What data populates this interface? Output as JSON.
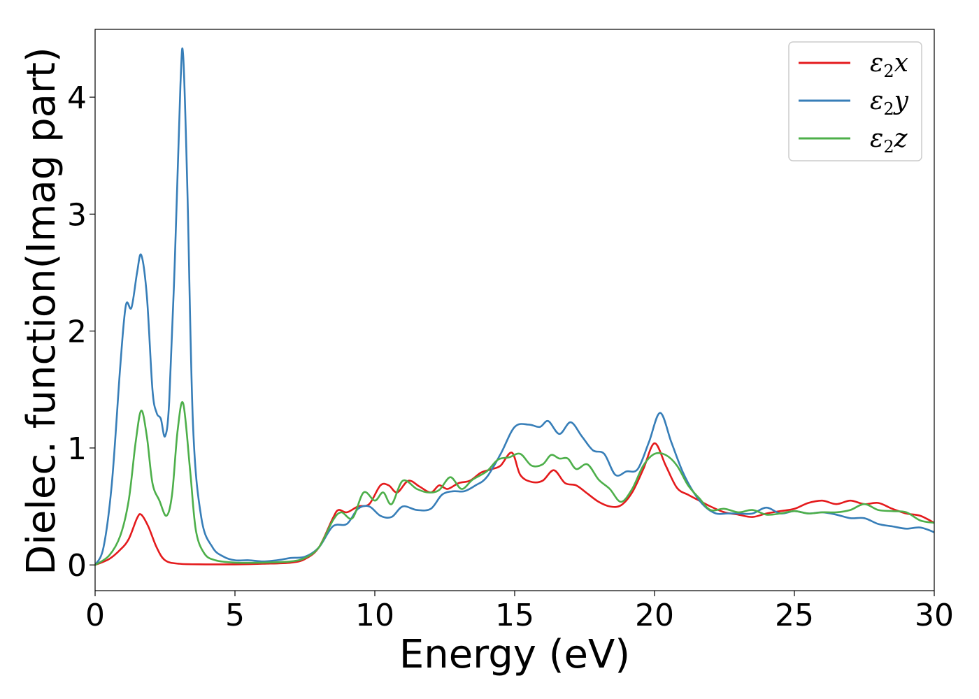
{
  "chart_data": {
    "type": "line",
    "xlabel": "Energy (eV)",
    "ylabel": "Dielec. function(Imag part)",
    "xlim": [
      0,
      30
    ],
    "ylim": [
      -0.22,
      4.58
    ],
    "xticks": [
      0,
      5,
      10,
      15,
      20,
      25,
      30
    ],
    "xtick_labels": [
      "0",
      "5",
      "10",
      "15",
      "20",
      "25",
      "30"
    ],
    "yticks": [
      0,
      1,
      2,
      3,
      4
    ],
    "ytick_labels": [
      "0",
      "1",
      "2",
      "3",
      "4"
    ],
    "grid": false,
    "legend_position": "top-right",
    "series": [
      {
        "name": "ε2x",
        "base": "ε",
        "sub": "2",
        "tail": "x",
        "color": "#e41a1c",
        "points": [
          [
            0,
            0
          ],
          [
            0.5,
            0.05
          ],
          [
            0.9,
            0.13
          ],
          [
            1.2,
            0.22
          ],
          [
            1.5,
            0.4
          ],
          [
            1.65,
            0.43
          ],
          [
            1.9,
            0.33
          ],
          [
            2.2,
            0.15
          ],
          [
            2.5,
            0.04
          ],
          [
            3,
            0.01
          ],
          [
            4,
            0.005
          ],
          [
            5,
            0.005
          ],
          [
            6,
            0.01
          ],
          [
            7,
            0.02
          ],
          [
            7.5,
            0.05
          ],
          [
            8,
            0.15
          ],
          [
            8.5,
            0.4
          ],
          [
            8.7,
            0.47
          ],
          [
            9,
            0.45
          ],
          [
            9.4,
            0.5
          ],
          [
            9.8,
            0.52
          ],
          [
            10.2,
            0.68
          ],
          [
            10.5,
            0.68
          ],
          [
            10.8,
            0.62
          ],
          [
            11.2,
            0.72
          ],
          [
            11.6,
            0.67
          ],
          [
            12,
            0.62
          ],
          [
            12.3,
            0.68
          ],
          [
            12.6,
            0.65
          ],
          [
            13,
            0.7
          ],
          [
            13.4,
            0.72
          ],
          [
            13.8,
            0.79
          ],
          [
            14.2,
            0.82
          ],
          [
            14.5,
            0.85
          ],
          [
            14.9,
            0.96
          ],
          [
            15.2,
            0.77
          ],
          [
            15.6,
            0.71
          ],
          [
            16,
            0.72
          ],
          [
            16.4,
            0.81
          ],
          [
            16.8,
            0.7
          ],
          [
            17.2,
            0.68
          ],
          [
            17.6,
            0.61
          ],
          [
            18,
            0.54
          ],
          [
            18.4,
            0.5
          ],
          [
            18.8,
            0.51
          ],
          [
            19.2,
            0.62
          ],
          [
            19.6,
            0.82
          ],
          [
            20,
            1.04
          ],
          [
            20.4,
            0.85
          ],
          [
            20.8,
            0.66
          ],
          [
            21.2,
            0.6
          ],
          [
            21.6,
            0.55
          ],
          [
            22,
            0.5
          ],
          [
            22.5,
            0.45
          ],
          [
            23,
            0.43
          ],
          [
            23.5,
            0.41
          ],
          [
            24,
            0.44
          ],
          [
            24.5,
            0.46
          ],
          [
            25,
            0.48
          ],
          [
            25.5,
            0.53
          ],
          [
            26,
            0.55
          ],
          [
            26.5,
            0.52
          ],
          [
            27,
            0.55
          ],
          [
            27.5,
            0.52
          ],
          [
            28,
            0.53
          ],
          [
            28.5,
            0.48
          ],
          [
            29,
            0.44
          ],
          [
            29.5,
            0.42
          ],
          [
            30,
            0.36
          ]
        ]
      },
      {
        "name": "ε2y",
        "base": "ε",
        "sub": "2",
        "tail": "y",
        "color": "#377eb8",
        "points": [
          [
            0,
            0
          ],
          [
            0.3,
            0.15
          ],
          [
            0.6,
            0.7
          ],
          [
            0.9,
            1.7
          ],
          [
            1.1,
            2.22
          ],
          [
            1.3,
            2.2
          ],
          [
            1.5,
            2.5
          ],
          [
            1.65,
            2.65
          ],
          [
            1.85,
            2.3
          ],
          [
            2.05,
            1.5
          ],
          [
            2.2,
            1.3
          ],
          [
            2.35,
            1.25
          ],
          [
            2.5,
            1.1
          ],
          [
            2.65,
            1.4
          ],
          [
            2.85,
            2.6
          ],
          [
            3.05,
            4.1
          ],
          [
            3.15,
            4.35
          ],
          [
            3.3,
            3.2
          ],
          [
            3.5,
            1.2
          ],
          [
            3.8,
            0.4
          ],
          [
            4.2,
            0.15
          ],
          [
            4.6,
            0.07
          ],
          [
            5,
            0.04
          ],
          [
            5.5,
            0.04
          ],
          [
            6,
            0.03
          ],
          [
            6.5,
            0.04
          ],
          [
            7,
            0.06
          ],
          [
            7.5,
            0.07
          ],
          [
            8,
            0.15
          ],
          [
            8.5,
            0.33
          ],
          [
            9,
            0.35
          ],
          [
            9.4,
            0.48
          ],
          [
            9.8,
            0.5
          ],
          [
            10.2,
            0.42
          ],
          [
            10.6,
            0.41
          ],
          [
            11,
            0.5
          ],
          [
            11.5,
            0.47
          ],
          [
            12,
            0.48
          ],
          [
            12.4,
            0.6
          ],
          [
            12.8,
            0.63
          ],
          [
            13.2,
            0.63
          ],
          [
            13.6,
            0.68
          ],
          [
            14,
            0.75
          ],
          [
            14.5,
            0.95
          ],
          [
            15,
            1.18
          ],
          [
            15.5,
            1.2
          ],
          [
            15.9,
            1.18
          ],
          [
            16.2,
            1.23
          ],
          [
            16.6,
            1.12
          ],
          [
            17,
            1.22
          ],
          [
            17.4,
            1.1
          ],
          [
            17.8,
            0.98
          ],
          [
            18.2,
            0.95
          ],
          [
            18.6,
            0.77
          ],
          [
            19,
            0.8
          ],
          [
            19.4,
            0.82
          ],
          [
            19.8,
            1.05
          ],
          [
            20.2,
            1.3
          ],
          [
            20.6,
            1.05
          ],
          [
            21,
            0.8
          ],
          [
            21.4,
            0.62
          ],
          [
            21.8,
            0.5
          ],
          [
            22.2,
            0.44
          ],
          [
            22.6,
            0.44
          ],
          [
            23,
            0.44
          ],
          [
            23.5,
            0.44
          ],
          [
            24,
            0.49
          ],
          [
            24.5,
            0.44
          ],
          [
            25,
            0.46
          ],
          [
            25.5,
            0.44
          ],
          [
            26,
            0.45
          ],
          [
            26.5,
            0.43
          ],
          [
            27,
            0.4
          ],
          [
            27.5,
            0.4
          ],
          [
            28,
            0.35
          ],
          [
            28.5,
            0.33
          ],
          [
            29,
            0.31
          ],
          [
            29.5,
            0.32
          ],
          [
            30,
            0.28
          ]
        ]
      },
      {
        "name": "ε2z",
        "base": "ε",
        "sub": "2",
        "tail": "z",
        "color": "#4daf4a",
        "points": [
          [
            0,
            0
          ],
          [
            0.5,
            0.08
          ],
          [
            0.9,
            0.25
          ],
          [
            1.2,
            0.55
          ],
          [
            1.45,
            1.05
          ],
          [
            1.65,
            1.32
          ],
          [
            1.85,
            1.1
          ],
          [
            2.05,
            0.7
          ],
          [
            2.3,
            0.55
          ],
          [
            2.55,
            0.42
          ],
          [
            2.75,
            0.6
          ],
          [
            2.95,
            1.15
          ],
          [
            3.15,
            1.38
          ],
          [
            3.4,
            0.8
          ],
          [
            3.6,
            0.3
          ],
          [
            3.9,
            0.1
          ],
          [
            4.3,
            0.04
          ],
          [
            5,
            0.02
          ],
          [
            6,
            0.02
          ],
          [
            7,
            0.03
          ],
          [
            7.5,
            0.06
          ],
          [
            8,
            0.15
          ],
          [
            8.5,
            0.38
          ],
          [
            8.8,
            0.45
          ],
          [
            9.2,
            0.4
          ],
          [
            9.6,
            0.62
          ],
          [
            10,
            0.55
          ],
          [
            10.3,
            0.62
          ],
          [
            10.6,
            0.52
          ],
          [
            11,
            0.72
          ],
          [
            11.5,
            0.65
          ],
          [
            11.9,
            0.62
          ],
          [
            12.3,
            0.64
          ],
          [
            12.7,
            0.75
          ],
          [
            13.1,
            0.65
          ],
          [
            13.5,
            0.73
          ],
          [
            14,
            0.8
          ],
          [
            14.4,
            0.9
          ],
          [
            14.8,
            0.92
          ],
          [
            15.2,
            0.95
          ],
          [
            15.6,
            0.85
          ],
          [
            16,
            0.86
          ],
          [
            16.3,
            0.94
          ],
          [
            16.6,
            0.91
          ],
          [
            16.9,
            0.91
          ],
          [
            17.2,
            0.82
          ],
          [
            17.6,
            0.86
          ],
          [
            18,
            0.73
          ],
          [
            18.4,
            0.65
          ],
          [
            18.8,
            0.54
          ],
          [
            19.2,
            0.65
          ],
          [
            19.6,
            0.85
          ],
          [
            20,
            0.95
          ],
          [
            20.4,
            0.94
          ],
          [
            20.8,
            0.85
          ],
          [
            21.2,
            0.68
          ],
          [
            21.6,
            0.57
          ],
          [
            22,
            0.47
          ],
          [
            22.5,
            0.48
          ],
          [
            23,
            0.45
          ],
          [
            23.5,
            0.47
          ],
          [
            24,
            0.43
          ],
          [
            24.5,
            0.44
          ],
          [
            25,
            0.46
          ],
          [
            25.5,
            0.44
          ],
          [
            26,
            0.45
          ],
          [
            26.5,
            0.45
          ],
          [
            27,
            0.47
          ],
          [
            27.5,
            0.52
          ],
          [
            28,
            0.47
          ],
          [
            28.5,
            0.46
          ],
          [
            29,
            0.45
          ],
          [
            29.5,
            0.38
          ],
          [
            30,
            0.36
          ]
        ]
      }
    ]
  }
}
